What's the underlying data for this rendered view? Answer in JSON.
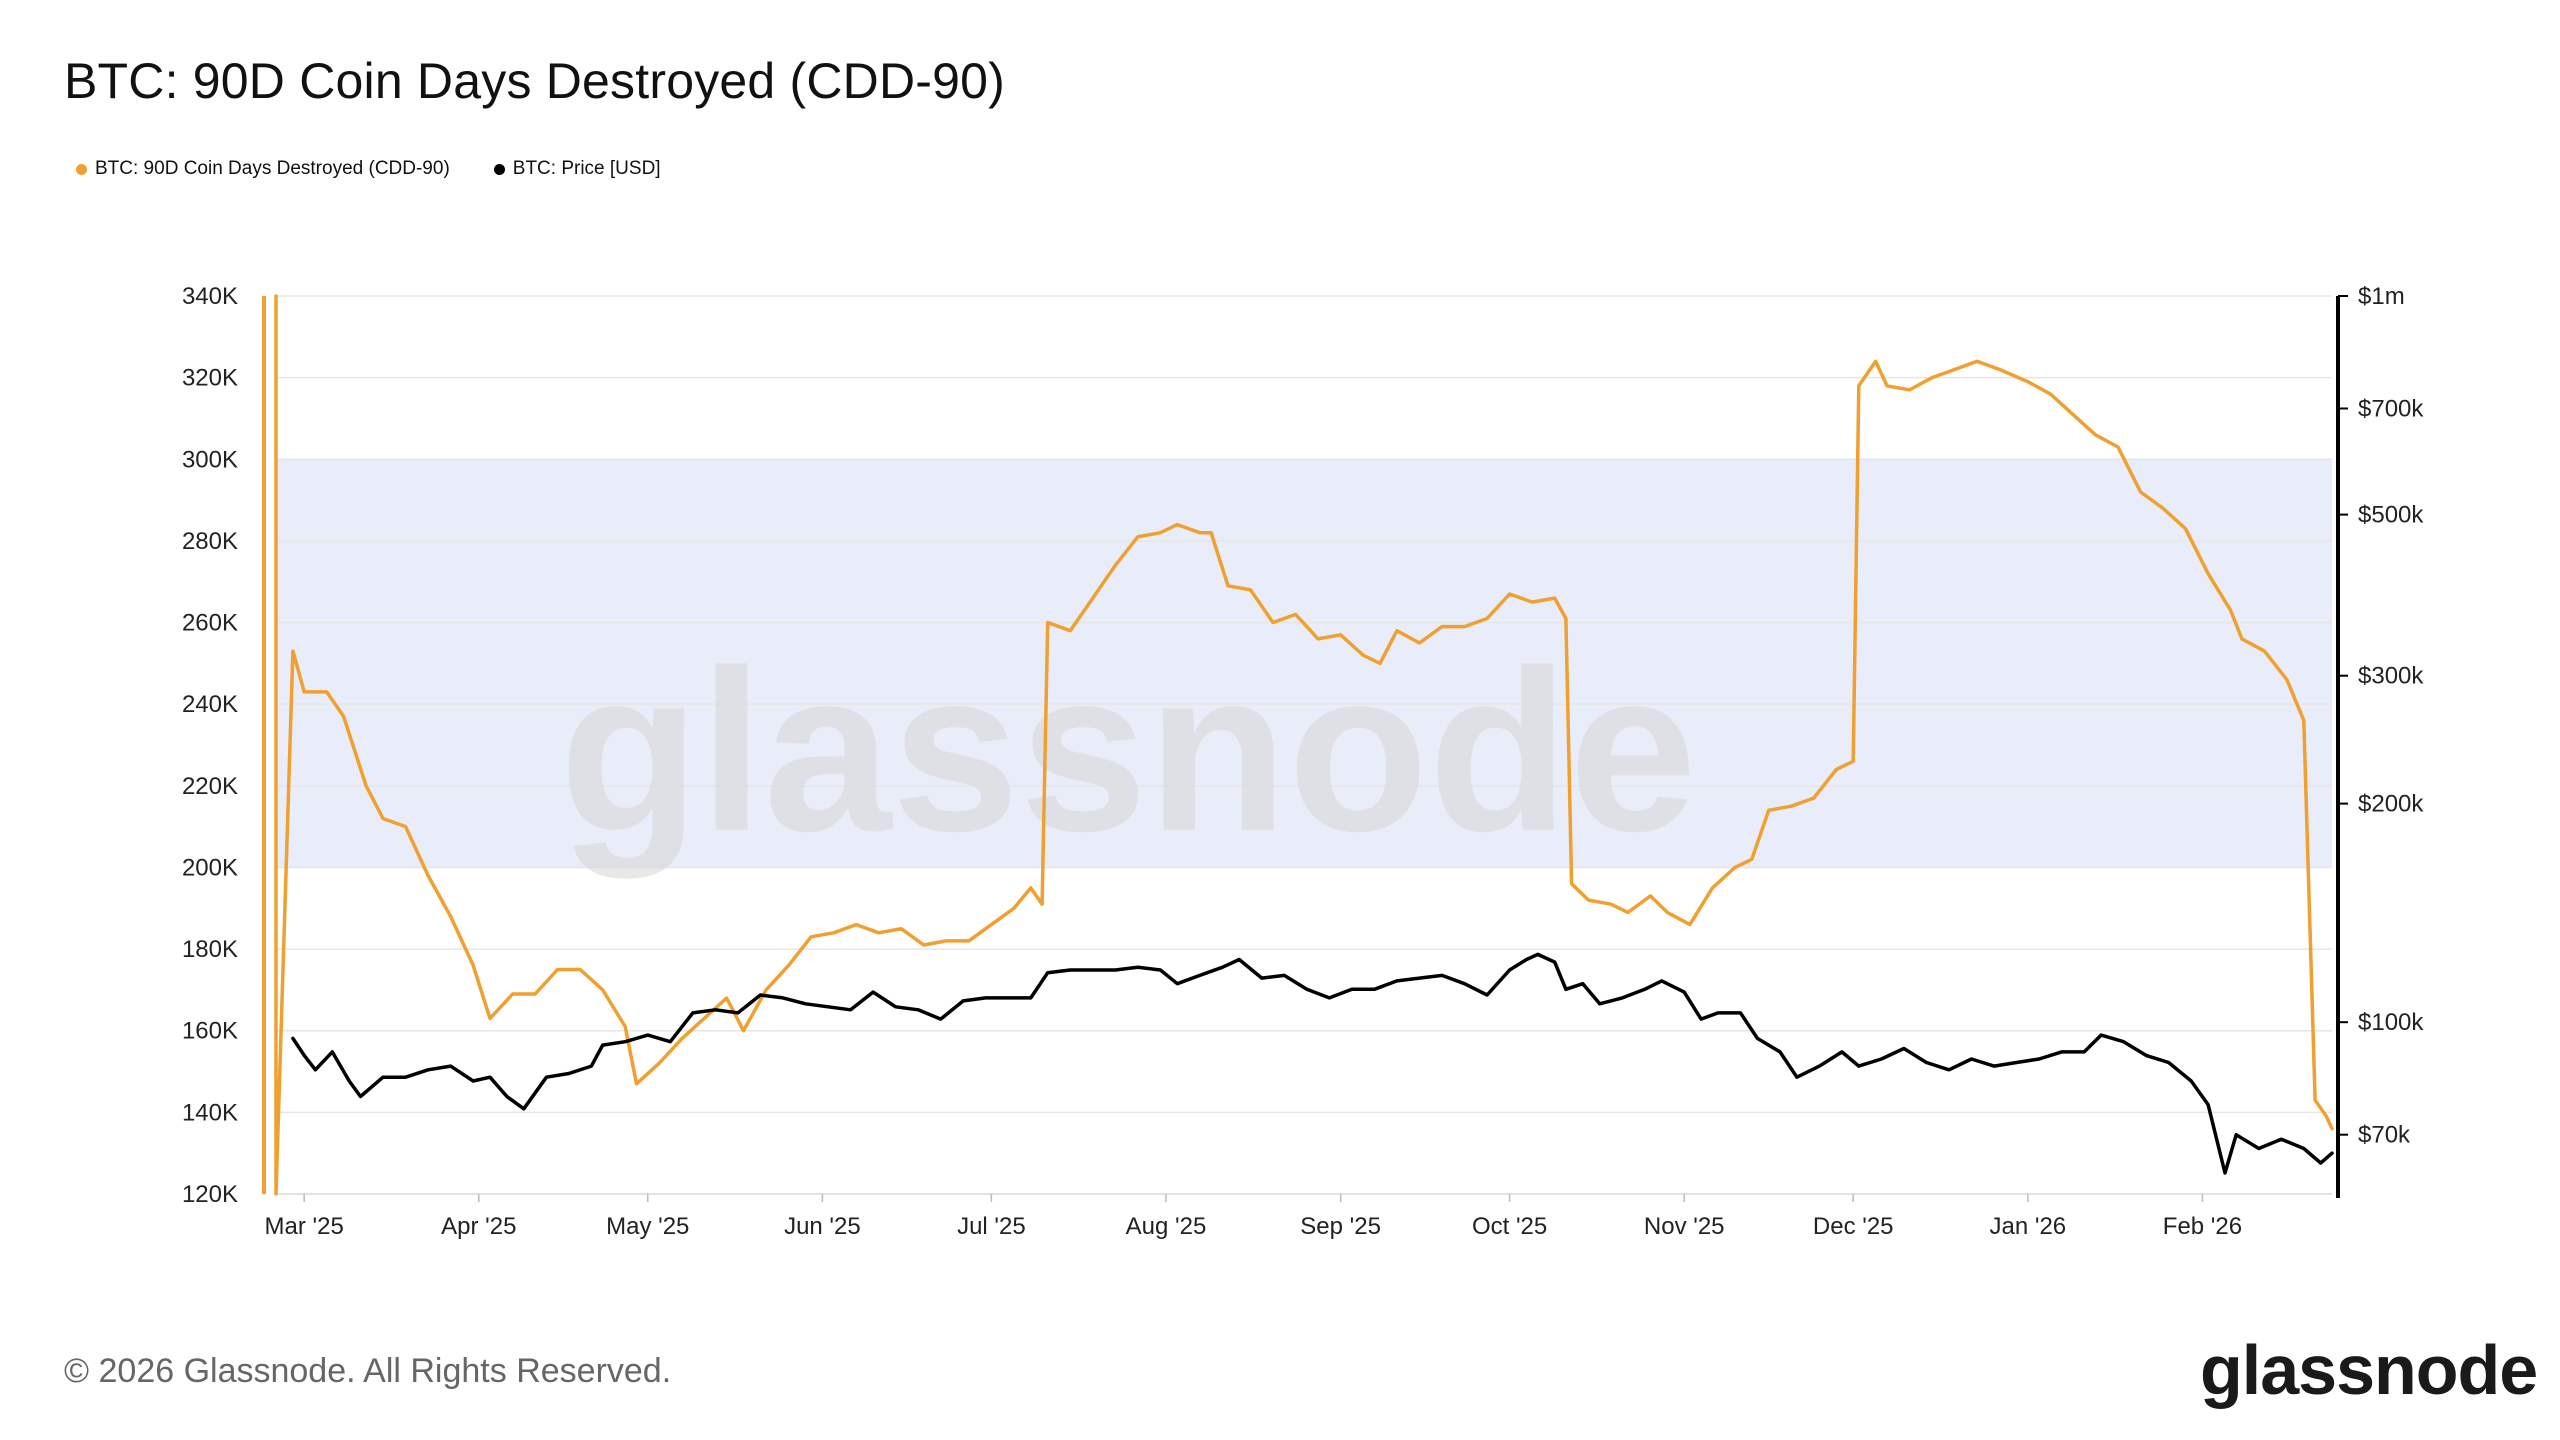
{
  "title": "BTC: 90D Coin Days Destroyed (CDD-90)",
  "legend": [
    {
      "label": "BTC: 90D Coin Days Destroyed (CDD-90)",
      "color": "#f0a030"
    },
    {
      "label": "BTC: Price [USD]",
      "color": "#000000"
    }
  ],
  "footer": "© 2026 Glassnode. All Rights Reserved.",
  "logo": "glassnode",
  "watermark": "glassnode",
  "chart_data": {
    "type": "line",
    "title": "BTC: 90D Coin Days Destroyed (CDD-90)",
    "x_range": [
      "2025-02-24",
      "2026-02-24"
    ],
    "x_ticks": [
      {
        "date": "2025-03-01",
        "label": "Mar '25"
      },
      {
        "date": "2025-04-01",
        "label": "Apr '25"
      },
      {
        "date": "2025-05-01",
        "label": "May '25"
      },
      {
        "date": "2025-06-01",
        "label": "Jun '25"
      },
      {
        "date": "2025-07-01",
        "label": "Jul '25"
      },
      {
        "date": "2025-08-01",
        "label": "Aug '25"
      },
      {
        "date": "2025-09-01",
        "label": "Sep '25"
      },
      {
        "date": "2025-10-01",
        "label": "Oct '25"
      },
      {
        "date": "2025-11-01",
        "label": "Nov '25"
      },
      {
        "date": "2025-12-01",
        "label": "Dec '25"
      },
      {
        "date": "2026-01-01",
        "label": "Jan '26"
      },
      {
        "date": "2026-02-01",
        "label": "Feb '26"
      }
    ],
    "y_left": {
      "ylim": [
        120000,
        340000
      ],
      "ticks": [
        120000,
        140000,
        160000,
        180000,
        200000,
        220000,
        240000,
        260000,
        280000,
        300000,
        320000,
        340000
      ],
      "tick_labels": [
        "120K",
        "140K",
        "160K",
        "180K",
        "200K",
        "220K",
        "240K",
        "260K",
        "280K",
        "300K",
        "320K",
        "340K"
      ]
    },
    "y_right": {
      "scale": "log",
      "ylim": [
        58000,
        1000000
      ],
      "ticks": [
        70000,
        100000,
        200000,
        300000,
        500000,
        700000,
        1000000
      ],
      "tick_labels": [
        "$70k",
        "$100k",
        "$200k",
        "$300k",
        "$500k",
        "$700k",
        "$1m"
      ]
    },
    "band": {
      "from": 200000,
      "to": 300000,
      "color": "#e8edf9"
    },
    "grid": true,
    "legend_position": "top-left",
    "series": [
      {
        "name": "BTC: 90D Coin Days Destroyed (CDD-90)",
        "color": "#f0a030",
        "axis": "left",
        "points": [
          [
            "2025-02-24",
            340000
          ],
          [
            "2025-02-24",
            120000
          ],
          [
            "2025-02-27",
            253000
          ],
          [
            "2025-03-01",
            243000
          ],
          [
            "2025-03-05",
            243000
          ],
          [
            "2025-03-08",
            237000
          ],
          [
            "2025-03-12",
            220000
          ],
          [
            "2025-03-15",
            212000
          ],
          [
            "2025-03-19",
            210000
          ],
          [
            "2025-03-23",
            198000
          ],
          [
            "2025-03-27",
            188000
          ],
          [
            "2025-03-31",
            176000
          ],
          [
            "2025-04-03",
            163000
          ],
          [
            "2025-04-07",
            169000
          ],
          [
            "2025-04-11",
            169000
          ],
          [
            "2025-04-15",
            175000
          ],
          [
            "2025-04-19",
            175000
          ],
          [
            "2025-04-23",
            170000
          ],
          [
            "2025-04-27",
            161000
          ],
          [
            "2025-04-29",
            147000
          ],
          [
            "2025-05-03",
            152000
          ],
          [
            "2025-05-07",
            158000
          ],
          [
            "2025-05-11",
            163000
          ],
          [
            "2025-05-15",
            168000
          ],
          [
            "2025-05-18",
            160000
          ],
          [
            "2025-05-22",
            170000
          ],
          [
            "2025-05-26",
            176000
          ],
          [
            "2025-05-30",
            183000
          ],
          [
            "2025-06-03",
            184000
          ],
          [
            "2025-06-07",
            186000
          ],
          [
            "2025-06-11",
            184000
          ],
          [
            "2025-06-15",
            185000
          ],
          [
            "2025-06-19",
            181000
          ],
          [
            "2025-06-23",
            182000
          ],
          [
            "2025-06-27",
            182000
          ],
          [
            "2025-07-01",
            186000
          ],
          [
            "2025-07-05",
            190000
          ],
          [
            "2025-07-08",
            195000
          ],
          [
            "2025-07-10",
            191000
          ],
          [
            "2025-07-11",
            260000
          ],
          [
            "2025-07-15",
            258000
          ],
          [
            "2025-07-19",
            266000
          ],
          [
            "2025-07-23",
            274000
          ],
          [
            "2025-07-27",
            281000
          ],
          [
            "2025-07-31",
            282000
          ],
          [
            "2025-08-03",
            284000
          ],
          [
            "2025-08-07",
            282000
          ],
          [
            "2025-08-09",
            282000
          ],
          [
            "2025-08-12",
            269000
          ],
          [
            "2025-08-16",
            268000
          ],
          [
            "2025-08-20",
            260000
          ],
          [
            "2025-08-24",
            262000
          ],
          [
            "2025-08-28",
            256000
          ],
          [
            "2025-09-01",
            257000
          ],
          [
            "2025-09-05",
            252000
          ],
          [
            "2025-09-08",
            250000
          ],
          [
            "2025-09-11",
            258000
          ],
          [
            "2025-09-15",
            255000
          ],
          [
            "2025-09-19",
            259000
          ],
          [
            "2025-09-23",
            259000
          ],
          [
            "2025-09-27",
            261000
          ],
          [
            "2025-10-01",
            267000
          ],
          [
            "2025-10-05",
            265000
          ],
          [
            "2025-10-09",
            266000
          ],
          [
            "2025-10-11",
            261000
          ],
          [
            "2025-10-12",
            196000
          ],
          [
            "2025-10-15",
            192000
          ],
          [
            "2025-10-19",
            191000
          ],
          [
            "2025-10-22",
            189000
          ],
          [
            "2025-10-26",
            193000
          ],
          [
            "2025-10-29",
            189000
          ],
          [
            "2025-11-02",
            186000
          ],
          [
            "2025-11-06",
            195000
          ],
          [
            "2025-11-10",
            200000
          ],
          [
            "2025-11-13",
            202000
          ],
          [
            "2025-11-16",
            214000
          ],
          [
            "2025-11-20",
            215000
          ],
          [
            "2025-11-24",
            217000
          ],
          [
            "2025-11-28",
            224000
          ],
          [
            "2025-12-01",
            226000
          ],
          [
            "2025-12-02",
            318000
          ],
          [
            "2025-12-05",
            324000
          ],
          [
            "2025-12-07",
            318000
          ],
          [
            "2025-12-11",
            317000
          ],
          [
            "2025-12-15",
            320000
          ],
          [
            "2025-12-19",
            322000
          ],
          [
            "2025-12-23",
            324000
          ],
          [
            "2025-12-27",
            322000
          ],
          [
            "2026-01-01",
            319000
          ],
          [
            "2026-01-05",
            316000
          ],
          [
            "2026-01-09",
            311000
          ],
          [
            "2026-01-13",
            306000
          ],
          [
            "2026-01-17",
            303000
          ],
          [
            "2026-01-21",
            292000
          ],
          [
            "2026-01-25",
            288000
          ],
          [
            "2026-01-29",
            283000
          ],
          [
            "2026-02-02",
            272000
          ],
          [
            "2026-02-06",
            263000
          ],
          [
            "2026-02-08",
            256000
          ],
          [
            "2026-02-12",
            253000
          ],
          [
            "2026-02-16",
            246000
          ],
          [
            "2026-02-19",
            236000
          ],
          [
            "2026-02-21",
            143000
          ],
          [
            "2026-02-23",
            139000
          ],
          [
            "2026-02-24",
            136000
          ]
        ]
      },
      {
        "name": "BTC: Price [USD]",
        "color": "#000000",
        "axis": "right",
        "points": [
          [
            "2025-02-27",
            95000
          ],
          [
            "2025-03-01",
            90000
          ],
          [
            "2025-03-03",
            86000
          ],
          [
            "2025-03-06",
            91000
          ],
          [
            "2025-03-09",
            83000
          ],
          [
            "2025-03-11",
            79000
          ],
          [
            "2025-03-15",
            84000
          ],
          [
            "2025-03-19",
            84000
          ],
          [
            "2025-03-23",
            86000
          ],
          [
            "2025-03-27",
            87000
          ],
          [
            "2025-03-31",
            83000
          ],
          [
            "2025-04-03",
            84000
          ],
          [
            "2025-04-06",
            79000
          ],
          [
            "2025-04-09",
            76000
          ],
          [
            "2025-04-13",
            84000
          ],
          [
            "2025-04-17",
            85000
          ],
          [
            "2025-04-21",
            87000
          ],
          [
            "2025-04-23",
            93000
          ],
          [
            "2025-04-27",
            94000
          ],
          [
            "2025-05-01",
            96000
          ],
          [
            "2025-05-05",
            94000
          ],
          [
            "2025-05-09",
            103000
          ],
          [
            "2025-05-13",
            104000
          ],
          [
            "2025-05-17",
            103000
          ],
          [
            "2025-05-21",
            109000
          ],
          [
            "2025-05-25",
            108000
          ],
          [
            "2025-05-29",
            106000
          ],
          [
            "2025-06-02",
            105000
          ],
          [
            "2025-06-06",
            104000
          ],
          [
            "2025-06-10",
            110000
          ],
          [
            "2025-06-14",
            105000
          ],
          [
            "2025-06-18",
            104000
          ],
          [
            "2025-06-22",
            101000
          ],
          [
            "2025-06-26",
            107000
          ],
          [
            "2025-06-30",
            108000
          ],
          [
            "2025-07-04",
            108000
          ],
          [
            "2025-07-08",
            108000
          ],
          [
            "2025-07-11",
            117000
          ],
          [
            "2025-07-15",
            118000
          ],
          [
            "2025-07-19",
            118000
          ],
          [
            "2025-07-23",
            118000
          ],
          [
            "2025-07-27",
            119000
          ],
          [
            "2025-07-31",
            118000
          ],
          [
            "2025-08-03",
            113000
          ],
          [
            "2025-08-07",
            116000
          ],
          [
            "2025-08-11",
            119000
          ],
          [
            "2025-08-14",
            122000
          ],
          [
            "2025-08-18",
            115000
          ],
          [
            "2025-08-22",
            116000
          ],
          [
            "2025-08-26",
            111000
          ],
          [
            "2025-08-30",
            108000
          ],
          [
            "2025-09-03",
            111000
          ],
          [
            "2025-09-07",
            111000
          ],
          [
            "2025-09-11",
            114000
          ],
          [
            "2025-09-15",
            115000
          ],
          [
            "2025-09-19",
            116000
          ],
          [
            "2025-09-23",
            113000
          ],
          [
            "2025-09-27",
            109000
          ],
          [
            "2025-10-01",
            118000
          ],
          [
            "2025-10-04",
            122000
          ],
          [
            "2025-10-06",
            124000
          ],
          [
            "2025-10-09",
            121000
          ],
          [
            "2025-10-11",
            111000
          ],
          [
            "2025-10-14",
            113000
          ],
          [
            "2025-10-17",
            106000
          ],
          [
            "2025-10-21",
            108000
          ],
          [
            "2025-10-25",
            111000
          ],
          [
            "2025-10-28",
            114000
          ],
          [
            "2025-11-01",
            110000
          ],
          [
            "2025-11-04",
            101000
          ],
          [
            "2025-11-07",
            103000
          ],
          [
            "2025-11-11",
            103000
          ],
          [
            "2025-11-14",
            95000
          ],
          [
            "2025-11-18",
            91000
          ],
          [
            "2025-11-21",
            84000
          ],
          [
            "2025-11-25",
            87000
          ],
          [
            "2025-11-29",
            91000
          ],
          [
            "2025-12-02",
            87000
          ],
          [
            "2025-12-06",
            89000
          ],
          [
            "2025-12-10",
            92000
          ],
          [
            "2025-12-14",
            88000
          ],
          [
            "2025-12-18",
            86000
          ],
          [
            "2025-12-22",
            89000
          ],
          [
            "2025-12-26",
            87000
          ],
          [
            "2025-12-30",
            88000
          ],
          [
            "2026-01-03",
            89000
          ],
          [
            "2026-01-07",
            91000
          ],
          [
            "2026-01-11",
            91000
          ],
          [
            "2026-01-14",
            96000
          ],
          [
            "2026-01-18",
            94000
          ],
          [
            "2026-01-22",
            90000
          ],
          [
            "2026-01-26",
            88000
          ],
          [
            "2026-01-30",
            83000
          ],
          [
            "2026-02-02",
            77000
          ],
          [
            "2026-02-05",
            62000
          ],
          [
            "2026-02-07",
            70000
          ],
          [
            "2026-02-11",
            67000
          ],
          [
            "2026-02-15",
            69000
          ],
          [
            "2026-02-19",
            67000
          ],
          [
            "2026-02-22",
            64000
          ],
          [
            "2026-02-24",
            66000
          ]
        ]
      }
    ]
  }
}
